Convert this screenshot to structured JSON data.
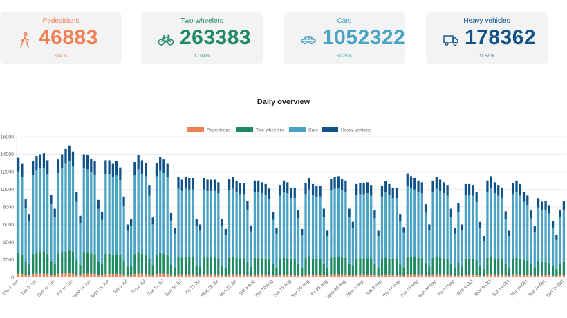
{
  "cards": [
    {
      "title": "Pedestrians",
      "value": "46883",
      "percent": "3.04 %",
      "color": "#ef7f55",
      "icon": "pedestrian-icon"
    },
    {
      "title": "Two-wheelers",
      "value": "263383",
      "percent": "17.09 %",
      "color": "#1e8a61",
      "icon": "bicycle-icon"
    },
    {
      "title": "Cars",
      "value": "1052322",
      "percent": "68.29 %",
      "color": "#4aa3c4",
      "icon": "car-icon"
    },
    {
      "title": "Heavy vehicles",
      "value": "178362",
      "percent": "11.57 %",
      "color": "#0e5289",
      "icon": "truck-icon"
    }
  ],
  "chart_title": "Daily overview",
  "chart_data": {
    "type": "bar",
    "stacked": true,
    "legend_position": "top",
    "grid": true,
    "ylim": [
      0,
      16000
    ],
    "yticks": [
      0,
      2000,
      4000,
      6000,
      8000,
      10000,
      12000,
      14000,
      16000
    ],
    "x_tick_labels": [
      "Thu 1 Jun",
      "Tue 6 Jun",
      "Sun 11 Jun",
      "Fri 16 Jun",
      "Wed 21 Jun",
      "Mon 26 Jun",
      "Sat 1 Jul",
      "Thu 6 Jul",
      "Tue 11 Jul",
      "Sun 16 Jul",
      "Fri 21 Jul",
      "Wed 26 Jul",
      "Mon 31 Jul",
      "Sat 5 Aug",
      "Thu 10 Aug",
      "Tue 15 Aug",
      "Sun 20 Aug",
      "Fri 25 Aug",
      "Wed 30 Aug",
      "Mon 4 Sep",
      "Sat 9 Sep",
      "Thu 14 Sep",
      "Tue 19 Sep",
      "Sun 24 Sep",
      "Fri 29 Sep",
      "Wed 4 Oct",
      "Mon 9 Oct",
      "Sat 14 Oct",
      "Thu 19 Oct",
      "Tue 24 Oct",
      "Sun 29 Oct"
    ],
    "totals": [
      13600,
      12900,
      8900,
      7200,
      13200,
      13800,
      14000,
      14100,
      13300,
      9400,
      7800,
      13400,
      14000,
      14600,
      15000,
      14300,
      9700,
      7000,
      14000,
      13900,
      13500,
      13200,
      8800,
      7400,
      13300,
      13300,
      12900,
      13200,
      12500,
      9200,
      6000,
      6600,
      13100,
      13900,
      13300,
      13000,
      10500,
      6800,
      13000,
      13700,
      13400,
      12900,
      7300,
      5600,
      11400,
      11100,
      11400,
      11300,
      11300,
      6600,
      6000,
      11300,
      11100,
      11100,
      11100,
      10800,
      6600,
      5500,
      11200,
      11400,
      10900,
      10700,
      10700,
      8700,
      5900,
      11000,
      11000,
      10800,
      10600,
      10100,
      7400,
      5600,
      10500,
      11000,
      10800,
      10200,
      10200,
      7600,
      5500,
      10700,
      11300,
      10600,
      10400,
      10400,
      7800,
      5300,
      11200,
      11400,
      11500,
      11200,
      11000,
      7800,
      6300,
      10600,
      10700,
      10700,
      10800,
      10500,
      7600,
      5300,
      10400,
      10900,
      10600,
      10200,
      10200,
      7200,
      5700,
      11800,
      11500,
      11300,
      11000,
      10800,
      8300,
      6000,
      11000,
      11400,
      11100,
      10800,
      10500,
      7800,
      5600,
      8400,
      6000,
      10600,
      10600,
      10500,
      9700,
      6300,
      4700,
      11000,
      11500,
      10800,
      10500,
      10200,
      7500,
      5300,
      10700,
      11000,
      10600,
      9700,
      9300,
      7600,
      5800,
      9000,
      8600,
      8700,
      8200,
      6400,
      4800,
      7700,
      8700
    ],
    "series": [
      {
        "name": "Pedestrians",
        "color": "#ef7f55",
        "share": 0.0304
      },
      {
        "name": "Two-wheelers",
        "color": "#1e8a61",
        "share": 0.1709
      },
      {
        "name": "Cars",
        "color": "#4aa3c4",
        "share": 0.6829
      },
      {
        "name": "Heavy vehicles",
        "color": "#0e5289",
        "share": 0.1157
      }
    ]
  }
}
